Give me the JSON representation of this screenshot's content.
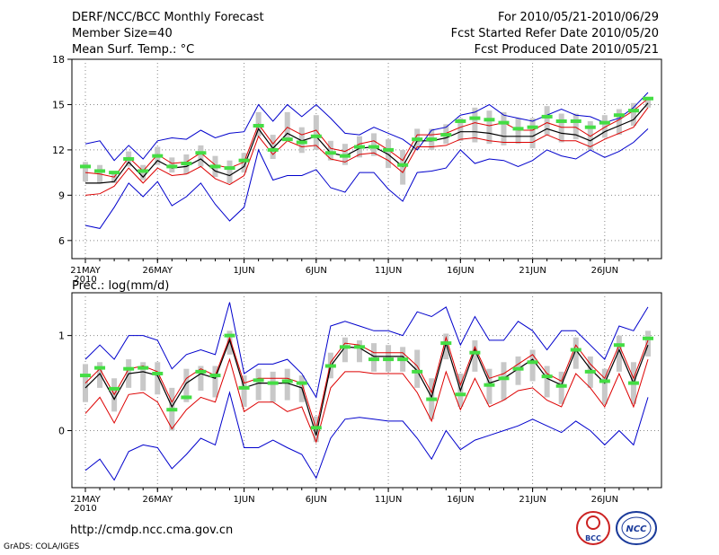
{
  "header": {
    "title": "DERF/NCC/BCC Monthly Forecast",
    "member_size": "Member Size=40",
    "variable1": "Mean Surf. Temp.: °C",
    "period": "For 2010/05/21-2010/06/29",
    "started": "Fcst Started Refer Date 2010/05/20",
    "produced": "Fcst Produced Date 2010/05/21"
  },
  "footer": {
    "url": "http://cmdp.ncc.cma.gov.cn",
    "credit": "GrADS: COLA/IGES",
    "logo1_text": "BCC",
    "logo2_text": "NCC"
  },
  "colors": {
    "ensemble_bound": "#0000cc",
    "spread": "#dd0000",
    "mean": "#000000",
    "box": "#c8c8c8",
    "marker": "#44dd44"
  },
  "chart_data": [
    {
      "type": "line",
      "title": "Mean Surf. Temp.: °C",
      "xlabel": "",
      "ylabel": "°C",
      "ylim": [
        4.8,
        18
      ],
      "yticks": [
        6,
        9,
        12,
        15,
        18
      ],
      "grid": true,
      "x_start_label": "21MAY",
      "x_year_label": "2010",
      "xtick_labels": [
        "21MAY",
        "26MAY",
        "1JUN",
        "6JUN",
        "11JUN",
        "16JUN",
        "21JUN",
        "26JUN"
      ],
      "xtick_days": [
        1,
        6,
        12,
        17,
        22,
        27,
        32,
        37
      ],
      "days": 40,
      "series": [
        {
          "name": "ensemble max",
          "values": [
            12.4,
            12.6,
            11.3,
            12.3,
            11.4,
            12.6,
            12.8,
            12.7,
            13.3,
            12.8,
            13.1,
            13.2,
            15.0,
            13.9,
            15.0,
            14.2,
            15.0,
            14.1,
            13.1,
            13.0,
            13.5,
            13.1,
            12.7,
            12.0,
            13.3,
            13.5,
            14.3,
            14.5,
            15.0,
            14.3,
            14.1,
            13.9,
            14.3,
            14.7,
            14.3,
            14.2,
            13.8,
            14.1,
            14.8,
            15.8
          ]
        },
        {
          "name": "spread upper",
          "values": [
            10.5,
            10.4,
            10.2,
            11.5,
            10.6,
            11.7,
            11.1,
            11.2,
            11.8,
            11.0,
            10.8,
            11.2,
            13.7,
            12.4,
            13.5,
            13.0,
            13.3,
            12.1,
            11.9,
            12.4,
            12.6,
            12.0,
            11.3,
            13.0,
            13.0,
            13.1,
            13.5,
            13.8,
            13.6,
            13.8,
            13.3,
            13.3,
            13.8,
            13.5,
            13.5,
            12.9,
            13.5,
            14.0,
            14.6,
            15.4
          ]
        },
        {
          "name": "ensemble mean",
          "values": [
            9.8,
            9.8,
            9.9,
            11.2,
            10.2,
            11.3,
            10.8,
            10.9,
            11.4,
            10.6,
            10.3,
            10.9,
            13.4,
            12.1,
            13.1,
            12.6,
            12.9,
            11.8,
            11.6,
            12.1,
            12.2,
            11.7,
            10.9,
            12.6,
            12.6,
            12.8,
            13.2,
            13.2,
            13.1,
            12.9,
            12.9,
            12.9,
            13.4,
            13.1,
            13.0,
            12.6,
            13.2,
            13.6,
            14.0,
            15.1
          ]
        },
        {
          "name": "spread lower",
          "values": [
            9.0,
            9.1,
            9.6,
            10.8,
            9.8,
            10.8,
            10.3,
            10.4,
            10.9,
            10.1,
            9.7,
            10.3,
            12.9,
            11.7,
            12.6,
            12.2,
            12.3,
            11.4,
            11.2,
            11.7,
            11.8,
            11.3,
            10.5,
            12.2,
            12.2,
            12.3,
            12.7,
            12.8,
            12.6,
            12.5,
            12.5,
            12.5,
            13.0,
            12.6,
            12.6,
            12.2,
            12.7,
            13.1,
            13.5,
            14.8
          ]
        },
        {
          "name": "ensemble min",
          "values": [
            7.0,
            6.8,
            8.2,
            9.8,
            8.9,
            9.9,
            8.3,
            8.9,
            9.8,
            8.4,
            7.3,
            8.2,
            12.0,
            10.0,
            10.3,
            10.3,
            10.7,
            9.5,
            9.2,
            10.5,
            10.5,
            9.4,
            8.6,
            10.5,
            10.6,
            10.8,
            12.0,
            11.1,
            11.4,
            11.3,
            10.9,
            11.3,
            12.0,
            11.6,
            11.4,
            12.0,
            11.5,
            11.9,
            12.5,
            13.4
          ]
        }
      ],
      "box_upper": [
        11.2,
        11.0,
        10.6,
        11.9,
        11.0,
        12.2,
        11.5,
        11.7,
        12.3,
        11.6,
        11.3,
        11.8,
        14.5,
        13.0,
        14.5,
        13.5,
        14.3,
        12.6,
        12.4,
        12.9,
        13.1,
        12.7,
        12.0,
        13.4,
        13.4,
        13.7,
        14.1,
        14.8,
        14.6,
        14.5,
        14.1,
        14.1,
        14.9,
        14.4,
        14.4,
        13.9,
        14.3,
        14.7,
        15.1,
        15.5
      ],
      "box_lower": [
        9.9,
        9.8,
        9.8,
        10.9,
        10.0,
        11.0,
        10.5,
        10.4,
        10.9,
        10.2,
        9.8,
        10.5,
        12.9,
        11.4,
        12.7,
        11.8,
        12.0,
        11.3,
        11.0,
        11.5,
        11.6,
        10.8,
        9.7,
        12.0,
        12.0,
        12.4,
        12.6,
        12.5,
        12.4,
        12.3,
        12.4,
        12.1,
        13.0,
        12.5,
        12.7,
        12.0,
        12.8,
        13.0,
        13.6,
        14.8
      ],
      "markers": [
        10.9,
        10.6,
        10.5,
        11.4,
        10.6,
        11.6,
        10.9,
        11.1,
        11.8,
        10.9,
        10.8,
        11.3,
        13.6,
        12.0,
        12.7,
        12.5,
        12.9,
        11.8,
        11.6,
        12.2,
        12.2,
        12.0,
        11.0,
        12.7,
        12.7,
        13.0,
        13.9,
        14.1,
        14.0,
        13.8,
        13.4,
        13.5,
        14.2,
        13.9,
        13.9,
        13.5,
        13.8,
        14.3,
        14.6,
        15.4
      ]
    },
    {
      "type": "line",
      "title": "Prec.: log(mm/d)",
      "xlabel": "",
      "ylabel": "log(mm/d)",
      "ylim": [
        -0.6,
        1.45
      ],
      "yticks": [
        0,
        1
      ],
      "grid": true,
      "x_start_label": "21MAY",
      "x_year_label": "2010",
      "xtick_labels": [
        "21MAY",
        "26MAY",
        "1JUN",
        "6JUN",
        "11JUN",
        "16JUN",
        "21JUN",
        "26JUN"
      ],
      "xtick_days": [
        1,
        6,
        12,
        17,
        22,
        27,
        32,
        37
      ],
      "days": 40,
      "series": [
        {
          "name": "ensemble max",
          "values": [
            0.75,
            0.9,
            0.75,
            1.0,
            1.0,
            0.95,
            0.65,
            0.8,
            0.85,
            0.8,
            1.35,
            0.6,
            0.7,
            0.7,
            0.75,
            0.6,
            0.35,
            1.1,
            1.15,
            1.1,
            1.05,
            1.05,
            1.0,
            1.25,
            1.2,
            1.3,
            0.9,
            1.2,
            0.95,
            0.95,
            1.15,
            1.05,
            0.85,
            1.05,
            1.05,
            0.9,
            0.75,
            1.1,
            1.05,
            1.3
          ]
        },
        {
          "name": "spread upper",
          "values": [
            0.5,
            0.65,
            0.38,
            0.65,
            0.68,
            0.62,
            0.3,
            0.55,
            0.65,
            0.58,
            0.98,
            0.5,
            0.55,
            0.55,
            0.55,
            0.5,
            0.02,
            0.72,
            0.92,
            0.9,
            0.82,
            0.82,
            0.82,
            0.68,
            0.4,
            0.98,
            0.48,
            0.88,
            0.55,
            0.6,
            0.7,
            0.8,
            0.6,
            0.52,
            0.9,
            0.7,
            0.55,
            0.9,
            0.55,
            0.95
          ]
        },
        {
          "name": "ensemble mean",
          "values": [
            0.45,
            0.6,
            0.33,
            0.6,
            0.62,
            0.58,
            0.25,
            0.5,
            0.6,
            0.55,
            0.95,
            0.45,
            0.5,
            0.5,
            0.5,
            0.45,
            -0.05,
            0.68,
            0.88,
            0.87,
            0.78,
            0.78,
            0.78,
            0.63,
            0.35,
            0.92,
            0.42,
            0.85,
            0.5,
            0.55,
            0.65,
            0.75,
            0.55,
            0.48,
            0.85,
            0.65,
            0.5,
            0.85,
            0.5,
            0.9
          ]
        },
        {
          "name": "spread lower",
          "values": [
            0.18,
            0.35,
            0.08,
            0.38,
            0.4,
            0.3,
            0.02,
            0.22,
            0.35,
            0.3,
            0.75,
            0.2,
            0.3,
            0.3,
            0.2,
            0.25,
            -0.12,
            0.45,
            0.62,
            0.62,
            0.6,
            0.6,
            0.6,
            0.4,
            0.1,
            0.62,
            0.22,
            0.55,
            0.25,
            0.32,
            0.42,
            0.45,
            0.32,
            0.25,
            0.6,
            0.45,
            0.25,
            0.6,
            0.25,
            0.75
          ]
        },
        {
          "name": "ensemble min",
          "values": [
            -0.42,
            -0.3,
            -0.52,
            -0.22,
            -0.15,
            -0.18,
            -0.4,
            -0.25,
            -0.08,
            -0.15,
            0.4,
            -0.18,
            -0.18,
            -0.1,
            -0.18,
            -0.25,
            -0.5,
            -0.08,
            0.12,
            0.14,
            0.12,
            0.1,
            0.1,
            -0.08,
            -0.3,
            0.0,
            -0.2,
            -0.1,
            -0.05,
            0.0,
            0.05,
            0.12,
            0.05,
            -0.02,
            0.1,
            0.0,
            -0.15,
            0.0,
            -0.15,
            0.35
          ]
        }
      ],
      "box_upper": [
        0.7,
        0.72,
        0.55,
        0.75,
        0.72,
        0.72,
        0.45,
        0.65,
        0.68,
        0.68,
        1.05,
        0.58,
        0.65,
        0.62,
        0.65,
        0.58,
        0.15,
        0.82,
        0.98,
        0.95,
        0.92,
        0.9,
        0.88,
        0.85,
        0.55,
        1.02,
        0.6,
        0.95,
        0.65,
        0.72,
        0.78,
        0.85,
        0.68,
        0.62,
        0.98,
        0.78,
        0.65,
        1.0,
        0.72,
        1.05
      ],
      "box_lower": [
        0.3,
        0.45,
        0.2,
        0.45,
        0.42,
        0.38,
        0.0,
        0.3,
        0.42,
        0.35,
        0.8,
        0.25,
        0.32,
        0.3,
        0.32,
        0.3,
        -0.12,
        0.55,
        0.72,
        0.72,
        0.62,
        0.62,
        0.62,
        0.45,
        0.12,
        0.75,
        0.25,
        0.62,
        0.28,
        0.32,
        0.48,
        0.52,
        0.35,
        0.28,
        0.65,
        0.45,
        0.28,
        0.62,
        0.28,
        0.78
      ],
      "markers": [
        0.58,
        0.66,
        0.44,
        0.65,
        0.66,
        0.6,
        0.22,
        0.35,
        0.62,
        0.58,
        1.0,
        0.45,
        0.53,
        0.5,
        0.52,
        0.5,
        0.03,
        0.68,
        0.88,
        0.88,
        0.75,
        0.75,
        0.75,
        0.62,
        0.33,
        0.92,
        0.38,
        0.82,
        0.48,
        0.55,
        0.65,
        0.72,
        0.57,
        0.47,
        0.85,
        0.62,
        0.52,
        0.9,
        0.5,
        0.97
      ]
    }
  ]
}
